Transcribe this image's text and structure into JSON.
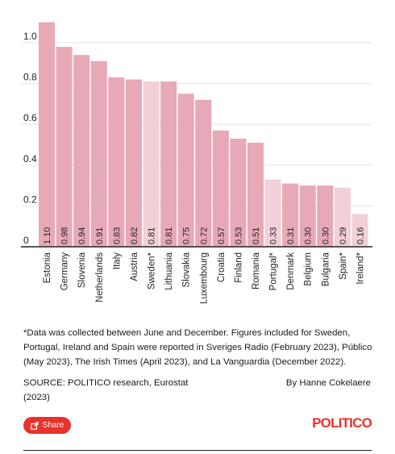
{
  "chart_data": {
    "type": "bar",
    "categories": [
      "Estonia",
      "Germany",
      "Slovenia",
      "Netherlands",
      "Italy",
      "Austria",
      "Sweden*",
      "Lithuania",
      "Slovakia",
      "Luxembourg",
      "Croatia",
      "Finland",
      "Romania",
      "Portugal*",
      "Denmark",
      "Belgium",
      "Bulgaria",
      "Spain*",
      "Ireland*"
    ],
    "values": [
      1.1,
      0.98,
      0.94,
      0.91,
      0.83,
      0.82,
      0.81,
      0.81,
      0.75,
      0.72,
      0.57,
      0.53,
      0.51,
      0.33,
      0.31,
      0.3,
      0.3,
      0.29,
      0.16
    ],
    "value_labels": [
      "1.10",
      "0.98",
      "0.94",
      "0.91",
      "0.83",
      "0.82",
      "0.81",
      "0.81",
      "0.75",
      "0.72",
      "0.57",
      "0.53",
      "0.51",
      "0.33",
      "0.31",
      "0.30",
      "0.30",
      "0.29",
      "0.16"
    ],
    "highlight": [
      false,
      false,
      false,
      false,
      false,
      false,
      true,
      false,
      false,
      false,
      false,
      false,
      false,
      true,
      false,
      false,
      false,
      true,
      true
    ],
    "yticks": [
      "0",
      "0.2",
      "0.4",
      "0.6",
      "0.8",
      "1.0"
    ],
    "ytick_values": [
      0,
      0.2,
      0.4,
      0.6,
      0.8,
      1.0
    ],
    "ylim": [
      0,
      1.1
    ],
    "grid": true,
    "colors": {
      "bar": "#e8a9b6",
      "bar_light": "#f2d0d7",
      "grid": "#e6e6e6",
      "axis": "#222222"
    }
  },
  "footnote": "*Data was collected between June and December. Figures included for Sweden, Portugal, Ireland and Spain were reported in Sveriges Radio (February 2023), Público (May 2023), The Irish Times (April 2023), and La Vanguardia (December 2022).",
  "source": "SOURCE: POLITICO research, Eurostat (2023)",
  "byline": "By Hanne Cokelaere",
  "share": {
    "label": "Share",
    "icon": "share-icon"
  },
  "logo": "POLITICO"
}
